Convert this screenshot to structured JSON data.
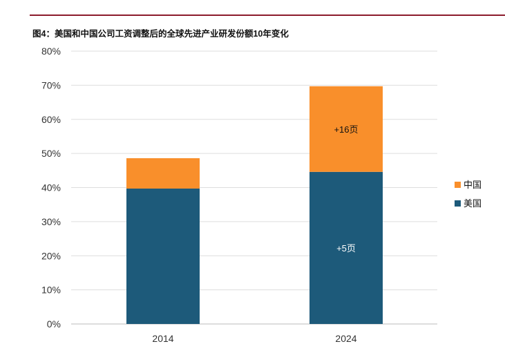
{
  "chart_data": {
    "type": "bar",
    "stacked": true,
    "title": "图4：美国和中国公司工资调整后的全球先进产业研发份额10年变化",
    "categories": [
      "2014",
      "2024"
    ],
    "series": [
      {
        "name": "美国",
        "values": [
          39.7,
          44.6
        ],
        "color": "#1d5a7a",
        "labels": [
          "",
          "+5页"
        ]
      },
      {
        "name": "中国",
        "values": [
          8.9,
          25.1
        ],
        "color": "#f98f2b",
        "labels": [
          "",
          "+16页"
        ]
      }
    ],
    "ylim": [
      0,
      80
    ],
    "yticks": [
      "0%",
      "10%",
      "20%",
      "30%",
      "40%",
      "50%",
      "60%",
      "70%",
      "80%"
    ],
    "grid": true,
    "legend": "right",
    "legend_order": [
      "中国",
      "美国"
    ]
  },
  "header_color": "#8b1a2b"
}
